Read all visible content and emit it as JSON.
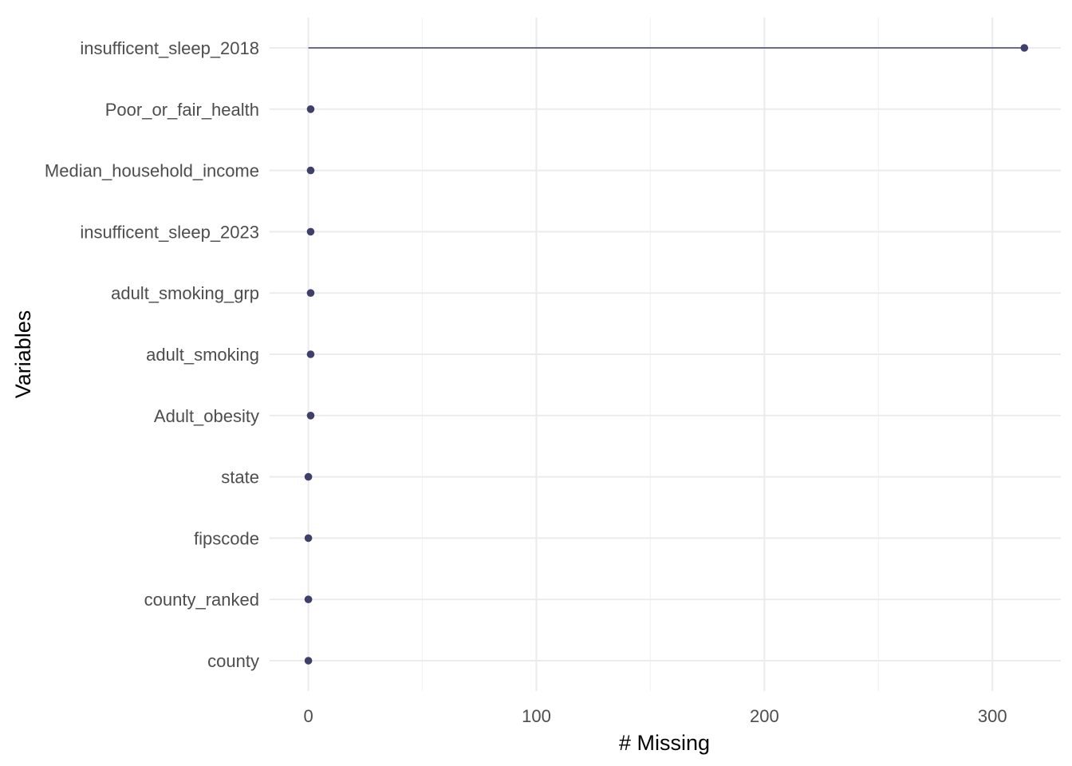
{
  "chart_data": {
    "type": "lollipop",
    "xlabel": "# Missing",
    "ylabel": "Variables",
    "xlim": [
      -17,
      330
    ],
    "x_ticks": [
      0,
      100,
      200,
      300
    ],
    "x_minor_ticks": [
      50,
      150,
      250
    ],
    "grid": true,
    "legend": "none",
    "colors": {
      "point": "#3f3f6b",
      "line": "#3f3f6b",
      "grid": "#ebebeb"
    },
    "categories": [
      "insufficent_sleep_2018",
      "Poor_or_fair_health",
      "Median_household_income",
      "insufficent_sleep_2023",
      "adult_smoking_grp",
      "adult_smoking",
      "Adult_obesity",
      "state",
      "fipscode",
      "county_ranked",
      "county"
    ],
    "values": [
      314,
      1,
      1,
      1,
      1,
      1,
      1,
      0,
      0,
      0,
      0
    ]
  }
}
